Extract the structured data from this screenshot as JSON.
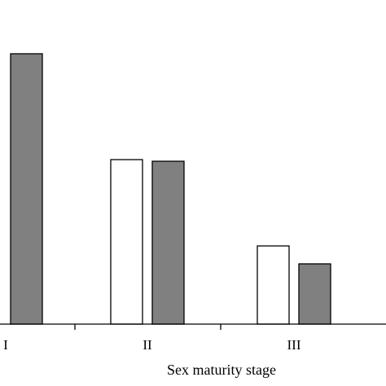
{
  "chart_data": {
    "type": "bar",
    "categories": [
      "I",
      "II",
      "III"
    ],
    "series": [
      {
        "values": [
          null,
          50.5,
          24.0
        ],
        "fill": "#ffffff",
        "stroke": "#000000"
      },
      {
        "values": [
          83.0,
          50.0,
          18.5
        ],
        "fill": "#808080",
        "stroke": "#000000"
      }
    ],
    "title": "",
    "xlabel": "Sex  maturity stage",
    "ylabel": "",
    "ylim": [
      0,
      100
    ],
    "grid": false,
    "legend": "none"
  }
}
